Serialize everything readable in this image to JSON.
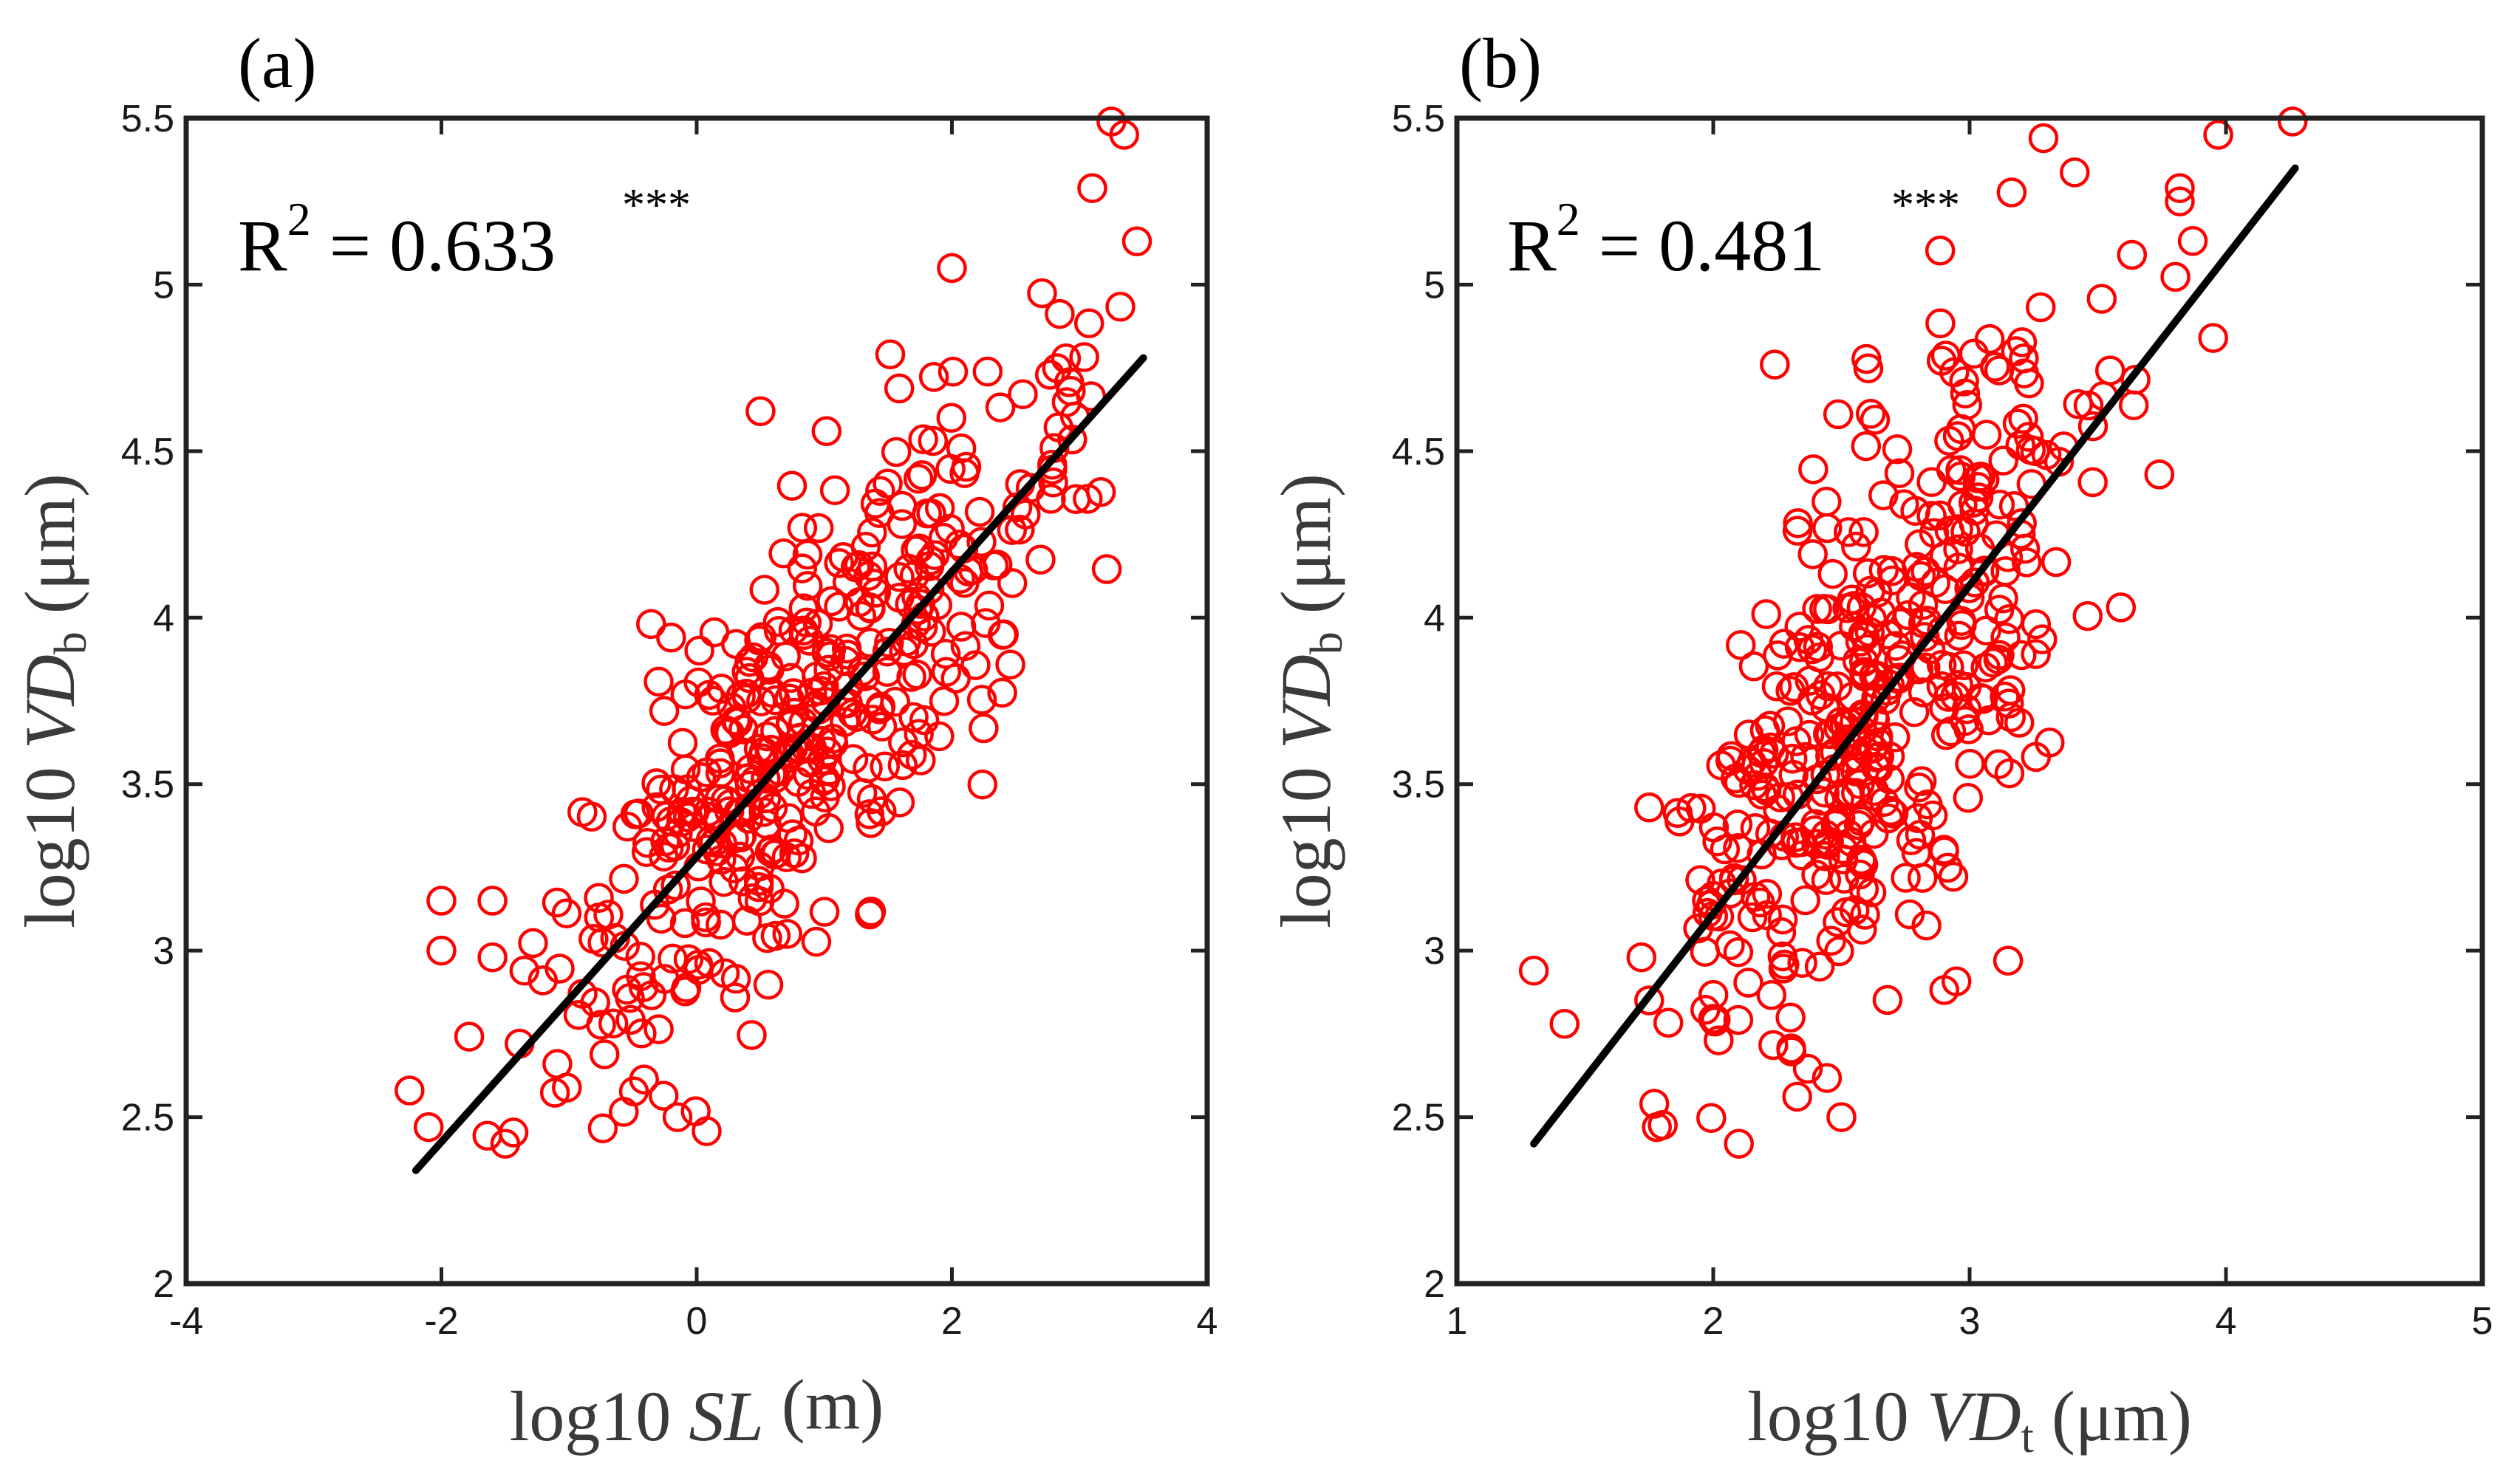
{
  "chart_data": [
    {
      "type": "scatter",
      "panel": "(a)",
      "xlabel": {
        "pre": "log10 ",
        "ital": "SL",
        "sub": "",
        "post": " (m)"
      },
      "ylabel": {
        "pre": "log10 ",
        "ital": "VD",
        "sub": "b",
        "post": " (μm)"
      },
      "xlim": [
        -4,
        4
      ],
      "ylim": [
        2,
        5.5
      ],
      "xticks": [
        -4,
        -2,
        0,
        2,
        4
      ],
      "yticks": [
        2,
        2.5,
        3,
        3.5,
        4,
        4.5,
        5,
        5.5
      ],
      "xtick_labels": [
        "-4",
        "-2",
        "0",
        "2",
        "4"
      ],
      "ytick_labels": [
        "2",
        "2.5",
        "3",
        "3.5",
        "4",
        "4.5",
        "5",
        "5.5"
      ],
      "annotation": {
        "r2_label": "R",
        "r2_exp": "2",
        "r2_value": " = 0.633",
        "significance": "***"
      },
      "fit_line": {
        "x": [
          -2.2,
          3.5
        ],
        "y": [
          2.34,
          4.78
        ]
      },
      "marker_color": "#ff0000",
      "line_color": "#000000",
      "n_points": 430,
      "seed": 12345,
      "noise_sd": 0.33,
      "x_sd": 1.05,
      "x_mean": 0.8,
      "x_range": [
        -2.2,
        3.45
      ],
      "extra_points": [
        [
          -2.25,
          2.58
        ],
        [
          -2.1,
          2.47
        ],
        [
          -1.5,
          2.42
        ],
        [
          3.25,
          5.49
        ],
        [
          3.35,
          5.45
        ],
        [
          3.1,
          5.29
        ],
        [
          3.45,
          5.13
        ],
        [
          2.0,
          5.05
        ],
        [
          -2.0,
          3.15
        ],
        [
          -1.6,
          3.15
        ],
        [
          -2.0,
          3.0
        ],
        [
          -1.6,
          2.98
        ],
        [
          -1.35,
          2.94
        ],
        [
          0.5,
          4.62
        ],
        [
          -0.2,
          3.94
        ],
        [
          -0.15,
          2.5
        ]
      ]
    },
    {
      "type": "scatter",
      "panel": "(b)",
      "xlabel": {
        "pre": "log10  ",
        "ital": "VD",
        "sub": "t",
        "post": " (μm)"
      },
      "ylabel": {
        "pre": "log10  ",
        "ital": "VD",
        "sub": "b",
        "post": " (μm)"
      },
      "xlim": [
        1,
        5
      ],
      "ylim": [
        2,
        5.5
      ],
      "xticks": [
        1,
        2,
        3,
        4,
        5
      ],
      "yticks": [
        2,
        2.5,
        3,
        3.5,
        4,
        4.5,
        5,
        5.5
      ],
      "xtick_labels": [
        "1",
        "2",
        "3",
        "4",
        "5"
      ],
      "ytick_labels": [
        "2",
        "2.5",
        "3",
        "3.5",
        "4",
        "4.5",
        "5",
        "5.5"
      ],
      "annotation": {
        "r2_label": "R",
        "r2_exp": "2",
        "r2_value": " = 0.481",
        "significance": "***"
      },
      "fit_line": {
        "x": [
          1.3,
          4.27
        ],
        "y": [
          2.42,
          5.35
        ]
      },
      "marker_color": "#ff0000",
      "line_color": "#000000",
      "n_points": 430,
      "seed": 67890,
      "noise_sd": 0.4,
      "x_sd": 0.42,
      "x_mean": 2.62,
      "x_range": [
        1.75,
        3.9
      ],
      "extra_points": [
        [
          1.3,
          2.94
        ],
        [
          1.42,
          2.78
        ],
        [
          1.77,
          2.54
        ],
        [
          1.78,
          2.47
        ],
        [
          2.1,
          2.42
        ],
        [
          4.26,
          5.49
        ],
        [
          3.97,
          5.45
        ],
        [
          3.82,
          5.29
        ],
        [
          3.82,
          5.25
        ],
        [
          3.95,
          4.84
        ],
        [
          3.74,
          4.43
        ],
        [
          3.15,
          2.97
        ],
        [
          2.5,
          2.5
        ],
        [
          1.75,
          3.43
        ],
        [
          1.72,
          2.98
        ],
        [
          2.24,
          4.76
        ]
      ]
    }
  ]
}
